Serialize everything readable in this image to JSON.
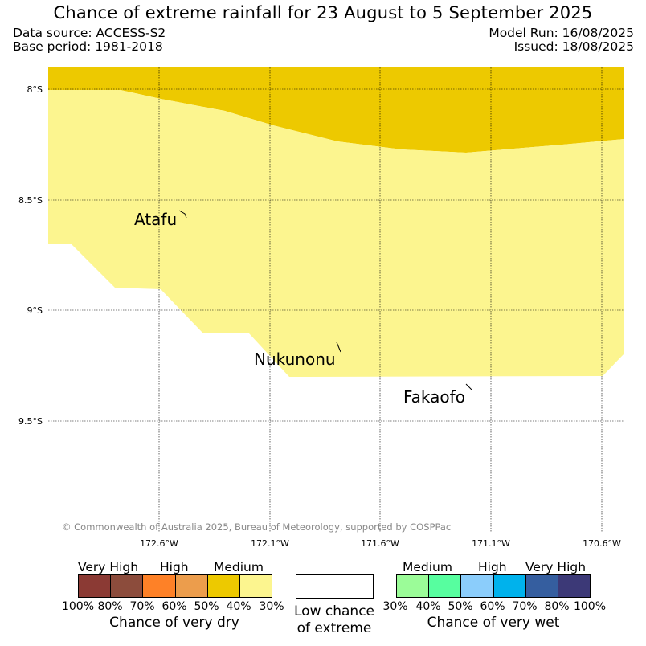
{
  "title": "Chance of extreme rainfall for 23 August to 5 September 2025",
  "data_source": "Data source: ACCESS-S2",
  "base_period": "Base period: 1981-2018",
  "model_run": "Model Run: 16/08/2025",
  "issued": "Issued: 18/08/2025",
  "copyright": "© Commonwealth of Australia 2025, Bureau of Meteorology, supported by COSPPac",
  "map": {
    "lat_labels": [
      "8°S",
      "8.5°S",
      "9°S",
      "9.5°S"
    ],
    "lon_labels": [
      "172.6°W",
      "172.1°W",
      "171.6°W",
      "171.1°W",
      "170.6°W"
    ],
    "places": [
      {
        "name": "Atafu",
        "id": "atafu"
      },
      {
        "name": "Nukunonu",
        "id": "nukunonu"
      },
      {
        "name": "Fakaofo",
        "id": "fakaofo"
      }
    ],
    "zones": [
      {
        "category": "Medium (40-50% chance of very dry)",
        "color": "#edc900"
      },
      {
        "category": "30-40% chance of very dry",
        "color": "#fcf58f"
      }
    ]
  },
  "legend_dry": {
    "headers": [
      "Very High",
      "High",
      "Medium"
    ],
    "colors": [
      "#8b3a34",
      "#8c4c3c",
      "#fe8127",
      "#ec9d4c",
      "#edc900",
      "#fcf58f"
    ],
    "ticks": [
      "100%",
      "80%",
      "70%",
      "60%",
      "50%",
      "40%",
      "30%"
    ],
    "caption": "Chance of very dry"
  },
  "legend_low": {
    "line1": "Low chance",
    "line2": "of extreme"
  },
  "legend_wet": {
    "headers": [
      "Medium",
      "High",
      "Very High"
    ],
    "colors": [
      "#9bfc98",
      "#57fe9f",
      "#8bcdfb",
      "#00b2ec",
      "#355e9f",
      "#3c3977"
    ],
    "ticks": [
      "30%",
      "40%",
      "50%",
      "60%",
      "70%",
      "80%",
      "100%"
    ],
    "caption": "Chance of very wet"
  }
}
